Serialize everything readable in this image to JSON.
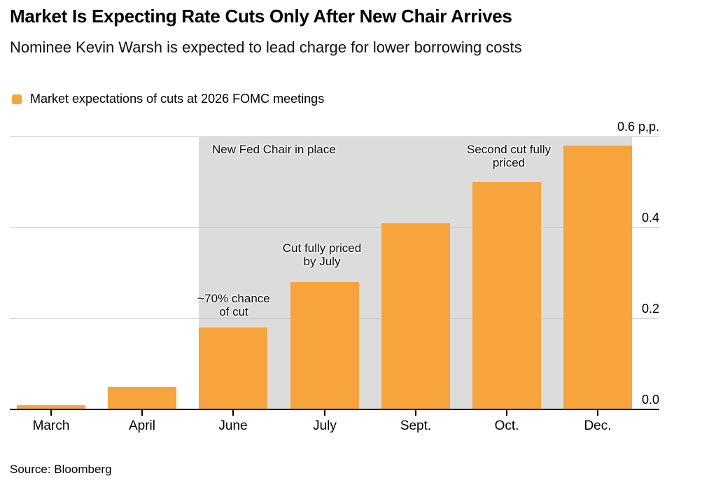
{
  "header": {
    "title": "Market Is Expecting Rate Cuts Only After New Chair Arrives",
    "subtitle": "Nominee Kevin Warsh is expected to lead charge for lower borrowing costs"
  },
  "legend": {
    "label": "Market expectations of cuts at 2026 FOMC meetings",
    "swatch_color": "#F7A43C"
  },
  "source": "Source: Bloomberg",
  "colors": {
    "bar_orange": "#F7A43C",
    "shaded_gray": "#DCDCDC",
    "gridline": "#C6C6C6",
    "axis": "#000000"
  },
  "chart_data": {
    "type": "bar",
    "categories": [
      "March",
      "April",
      "June",
      "July",
      "Sept.",
      "Oct.",
      "Dec."
    ],
    "values": [
      0.01,
      0.05,
      0.18,
      0.28,
      0.41,
      0.5,
      0.58
    ],
    "series_name": "Market expectations of cuts at 2026 FOMC meetings",
    "unit_label": "p,p.",
    "ylim": [
      0,
      0.6
    ],
    "yticks": [
      {
        "value": 0.0,
        "label": "0.0"
      },
      {
        "value": 0.2,
        "label": "0.2"
      },
      {
        "value": 0.4,
        "label": "0.4"
      },
      {
        "value": 0.6,
        "label": "0.6 p,p."
      }
    ],
    "grid": true,
    "axis_side": "right",
    "legend_position": "top-left",
    "shaded_region": {
      "from_category": "June",
      "to_category": "Dec.",
      "y_top": 0.6,
      "color": "#DCDCDC"
    },
    "annotations": [
      {
        "id": "new-fed-chair",
        "text": "New Fed Chair in place"
      },
      {
        "id": "june-note",
        "text": "~70% chance\nof cut"
      },
      {
        "id": "july-note",
        "text": "Cut fully priced\nby July"
      },
      {
        "id": "oct-note",
        "text": "Second cut fully\npriced"
      }
    ]
  }
}
